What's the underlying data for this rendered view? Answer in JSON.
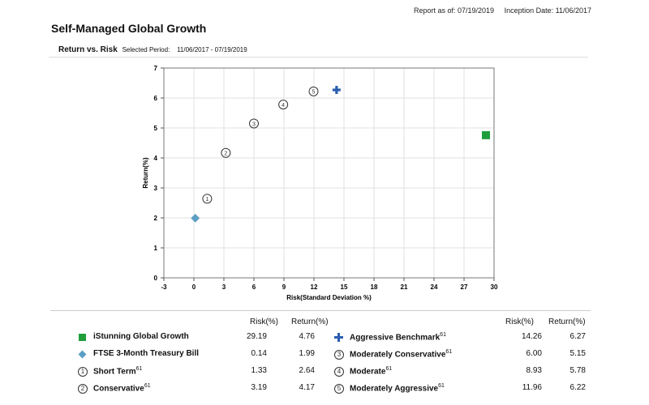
{
  "header": {
    "report_as_of": "Report as of: 07/19/2019",
    "inception": "Inception Date: 11/06/2017",
    "title": "Self-Managed Global Growth",
    "subtitle": "Return vs. Risk",
    "period_label": "Selected Period:",
    "period": "11/06/2017 - 07/19/2019"
  },
  "chart_data": {
    "type": "scatter",
    "xlabel": "Risk(Standard Deviation %)",
    "ylabel": "Return(%)",
    "xlim": [
      -3,
      30
    ],
    "ylim": [
      0,
      7
    ],
    "xticks": [
      -3,
      0,
      3,
      6,
      9,
      12,
      15,
      18,
      21,
      24,
      27,
      30
    ],
    "yticks": [
      0,
      1,
      2,
      3,
      4,
      5,
      6,
      7
    ],
    "grid": true,
    "series": [
      {
        "name": "iStunning Global Growth",
        "x": 29.19,
        "y": 4.76,
        "marker": "square",
        "color": "#1e9e3a"
      },
      {
        "name": "FTSE 3-Month Treasury Bill",
        "x": 0.14,
        "y": 1.99,
        "marker": "diamond",
        "color": "#5b9fc4"
      },
      {
        "name": "Short Term",
        "x": 1.33,
        "y": 2.64,
        "marker": "circle-number",
        "label": "1"
      },
      {
        "name": "Conservative",
        "x": 3.19,
        "y": 4.17,
        "marker": "circle-number",
        "label": "2"
      },
      {
        "name": "Aggressive Benchmark",
        "x": 14.26,
        "y": 6.27,
        "marker": "plus",
        "color": "#2a5db0"
      },
      {
        "name": "Moderately Conservative",
        "x": 6.0,
        "y": 5.15,
        "marker": "circle-number",
        "label": "3"
      },
      {
        "name": "Moderate",
        "x": 8.93,
        "y": 5.78,
        "marker": "circle-number",
        "label": "4"
      },
      {
        "name": "Moderately Aggressive",
        "x": 11.96,
        "y": 6.22,
        "marker": "circle-number",
        "label": "5"
      }
    ]
  },
  "legend": {
    "risk_header": "Risk(%)",
    "return_header": "Return(%)",
    "left": [
      {
        "name": "iStunning Global Growth",
        "sup": "",
        "risk": "29.19",
        "ret": "4.76",
        "icon": "square"
      },
      {
        "name": "FTSE 3-Month Treasury Bill",
        "sup": "",
        "risk": "0.14",
        "ret": "1.99",
        "icon": "diamond"
      },
      {
        "name": "Short Term",
        "sup": "61",
        "risk": "1.33",
        "ret": "2.64",
        "icon": "1"
      },
      {
        "name": "Conservative",
        "sup": "61",
        "risk": "3.19",
        "ret": "4.17",
        "icon": "2"
      }
    ],
    "right": [
      {
        "name": "Aggressive Benchmark",
        "sup": "61",
        "risk": "14.26",
        "ret": "6.27",
        "icon": "plus"
      },
      {
        "name": "Moderately Conservative",
        "sup": "61",
        "risk": "6.00",
        "ret": "5.15",
        "icon": "3"
      },
      {
        "name": "Moderate",
        "sup": "61",
        "risk": "8.93",
        "ret": "5.78",
        "icon": "4"
      },
      {
        "name": "Moderately Aggressive",
        "sup": "61",
        "risk": "11.96",
        "ret": "6.22",
        "icon": "5"
      }
    ]
  }
}
